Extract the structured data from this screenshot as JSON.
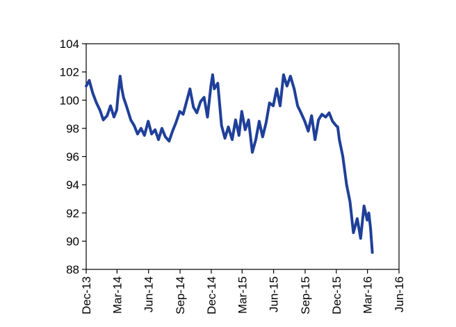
{
  "chart_data": {
    "type": "line",
    "title": "",
    "xlabel": "",
    "ylabel": "",
    "ylim": [
      88,
      104
    ],
    "yticks": [
      88,
      90,
      92,
      94,
      96,
      98,
      100,
      102,
      104
    ],
    "xlim": [
      "2013-12-01",
      "2016-06-01"
    ],
    "xticks": [
      {
        "date": "2013-12-01",
        "label": "Dec-13"
      },
      {
        "date": "2014-03-01",
        "label": "Mar-14"
      },
      {
        "date": "2014-06-01",
        "label": "Jun-14"
      },
      {
        "date": "2014-09-01",
        "label": "Sep-14"
      },
      {
        "date": "2014-12-01",
        "label": "Dec-14"
      },
      {
        "date": "2015-03-01",
        "label": "Mar-15"
      },
      {
        "date": "2015-06-01",
        "label": "Jun-15"
      },
      {
        "date": "2015-09-01",
        "label": "Sep-15"
      },
      {
        "date": "2015-12-01",
        "label": "Dec-15"
      },
      {
        "date": "2016-03-01",
        "label": "Mar-16"
      },
      {
        "date": "2016-06-01",
        "label": "Jun-16"
      }
    ],
    "grid": false,
    "legend": "none",
    "line_color": "#1f3f99",
    "series": [
      {
        "x": [
          "2013-12-01",
          "2013-12-10",
          "2013-12-20",
          "2013-12-31",
          "2014-01-10",
          "2014-01-20",
          "2014-01-31",
          "2014-02-10",
          "2014-02-20",
          "2014-02-28",
          "2014-03-05",
          "2014-03-10",
          "2014-03-15",
          "2014-03-20",
          "2014-03-31",
          "2014-04-10",
          "2014-04-20",
          "2014-04-30",
          "2014-05-10",
          "2014-05-20",
          "2014-05-31",
          "2014-06-10",
          "2014-06-20",
          "2014-06-30",
          "2014-07-10",
          "2014-07-20",
          "2014-07-31",
          "2014-08-10",
          "2014-08-20",
          "2014-08-31",
          "2014-09-10",
          "2014-09-20",
          "2014-09-30",
          "2014-10-10",
          "2014-10-20",
          "2014-10-31",
          "2014-11-10",
          "2014-11-20",
          "2014-11-30",
          "2014-12-05",
          "2014-12-10",
          "2014-12-20",
          "2014-12-31",
          "2015-01-10",
          "2015-01-20",
          "2015-01-31",
          "2015-02-10",
          "2015-02-20",
          "2015-02-28",
          "2015-03-10",
          "2015-03-20",
          "2015-03-31",
          "2015-04-10",
          "2015-04-20",
          "2015-04-30",
          "2015-05-10",
          "2015-05-20",
          "2015-05-31",
          "2015-06-10",
          "2015-06-20",
          "2015-06-30",
          "2015-07-10",
          "2015-07-20",
          "2015-07-31",
          "2015-08-10",
          "2015-08-20",
          "2015-08-31",
          "2015-09-10",
          "2015-09-20",
          "2015-09-30",
          "2015-10-10",
          "2015-10-20",
          "2015-10-31",
          "2015-11-10",
          "2015-11-20",
          "2015-11-30",
          "2015-12-05",
          "2015-12-10",
          "2015-12-20",
          "2015-12-31",
          "2016-01-10",
          "2016-01-20",
          "2016-01-31",
          "2016-02-10",
          "2016-02-20",
          "2016-02-29",
          "2016-03-05",
          "2016-03-10",
          "2016-03-15"
        ],
        "y": [
          101.0,
          101.4,
          100.5,
          99.8,
          99.3,
          98.6,
          98.9,
          99.6,
          98.8,
          99.3,
          100.6,
          101.7,
          100.8,
          100.2,
          99.4,
          98.6,
          98.2,
          97.6,
          98.0,
          97.5,
          98.5,
          97.6,
          97.9,
          97.2,
          98.0,
          97.4,
          97.1,
          97.8,
          98.4,
          99.2,
          99.0,
          99.9,
          100.8,
          99.5,
          99.1,
          99.9,
          100.2,
          98.8,
          101.0,
          101.8,
          100.8,
          101.2,
          98.2,
          97.3,
          98.1,
          97.2,
          98.6,
          97.5,
          99.2,
          97.9,
          98.6,
          96.3,
          97.2,
          98.5,
          97.4,
          98.4,
          99.8,
          99.6,
          100.8,
          99.6,
          101.8,
          101.0,
          101.7,
          100.8,
          99.6,
          99.1,
          98.5,
          97.8,
          98.9,
          97.2,
          98.6,
          99.0,
          98.8,
          99.1,
          98.5,
          98.2,
          98.1,
          97.2,
          96.0,
          94.0,
          92.8,
          90.6,
          91.6,
          90.2,
          92.5,
          91.5,
          92.0,
          90.9,
          89.2
        ]
      }
    ]
  }
}
